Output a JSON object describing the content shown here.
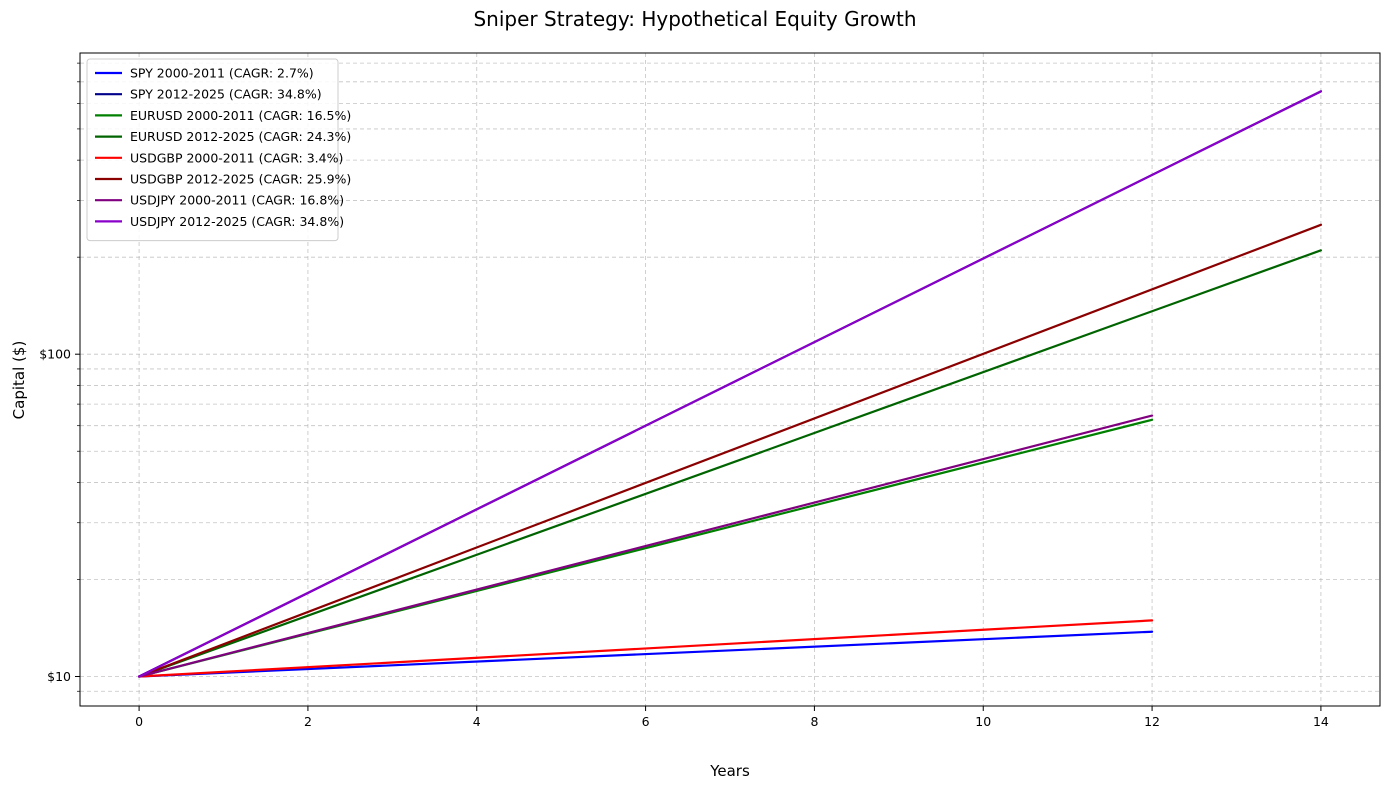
{
  "chart_data": {
    "type": "line",
    "title": "Sniper Strategy: Hypothetical Equity Growth",
    "xlabel": "Years",
    "ylabel": "Capital ($)",
    "xlim": [
      -0.7,
      14.7
    ],
    "ylim": [
      8.1,
      860
    ],
    "y_scale": "log",
    "x_ticks": [
      0,
      2,
      4,
      6,
      8,
      10,
      12,
      14
    ],
    "x_tick_labels": [
      "0",
      "2",
      "4",
      "6",
      "8",
      "10",
      "12",
      "14"
    ],
    "y_major_ticks": [
      10,
      100
    ],
    "y_tick_labels": [
      "$10",
      "$100"
    ],
    "y_minor_ticks": [
      9,
      20,
      30,
      40,
      50,
      60,
      70,
      80,
      90,
      200,
      300,
      400,
      500,
      600,
      700,
      800
    ],
    "grid": true,
    "legend_position": "top-left",
    "series": [
      {
        "name": "SPY 2000-2011 (CAGR: 2.7%)",
        "color": "#0000ff",
        "x": [
          0,
          12
        ],
        "y": [
          10,
          13.77
        ]
      },
      {
        "name": "SPY 2012-2025 (CAGR: 34.8%)",
        "color": "#00008b",
        "x": [
          0,
          14
        ],
        "y": [
          10,
          654.0
        ]
      },
      {
        "name": "EURUSD 2000-2011 (CAGR: 16.5%)",
        "color": "#008000",
        "x": [
          0,
          12
        ],
        "y": [
          10,
          62.6
        ]
      },
      {
        "name": "EURUSD 2012-2025 (CAGR: 24.3%)",
        "color": "#006400",
        "x": [
          0,
          14
        ],
        "y": [
          10,
          210.0
        ]
      },
      {
        "name": "USDGBP 2000-2011 (CAGR: 3.4%)",
        "color": "#ff0000",
        "x": [
          0,
          12
        ],
        "y": [
          10,
          14.93
        ]
      },
      {
        "name": "USDGBP 2012-2025 (CAGR: 25.9%)",
        "color": "#8b0000",
        "x": [
          0,
          14
        ],
        "y": [
          10,
          252.0
        ]
      },
      {
        "name": "USDJPY 2000-2011 (CAGR: 16.8%)",
        "color": "#800080",
        "x": [
          0,
          12
        ],
        "y": [
          10,
          64.5
        ]
      },
      {
        "name": "USDJPY 2012-2025 (CAGR: 34.8%)",
        "color": "#8a00c8",
        "x": [
          0,
          14
        ],
        "y": [
          10,
          654.0
        ]
      }
    ]
  }
}
